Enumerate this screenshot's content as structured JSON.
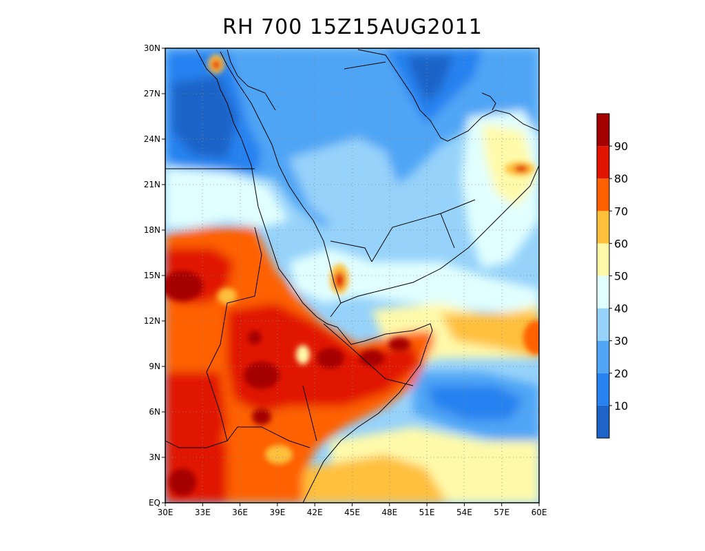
{
  "title": "RH 700 15Z15AUG2011",
  "map": {
    "lon_ticks": [
      "30E",
      "33E",
      "36E",
      "39E",
      "42E",
      "45E",
      "48E",
      "51E",
      "54E",
      "57E",
      "60E"
    ],
    "lat_ticks": [
      "EQ",
      "3N",
      "6N",
      "9N",
      "12N",
      "15N",
      "18N",
      "21N",
      "24N",
      "27N",
      "30N"
    ],
    "extent": {
      "lon_min": 30,
      "lon_max": 60,
      "lat_min": 0,
      "lat_max": 30
    }
  },
  "colorbar": {
    "labels": [
      "10",
      "20",
      "30",
      "40",
      "50",
      "60",
      "70",
      "80",
      "90"
    ],
    "colors": [
      "#1e64c8",
      "#2882f0",
      "#50a5f5",
      "#96d2fa",
      "#e1ffff",
      "#fffaaa",
      "#ffc03c",
      "#ff6000",
      "#e11400",
      "#a50000"
    ]
  },
  "chart_data": {
    "type": "heatmap",
    "title": "RH 700 15Z15AUG2011",
    "x_ticks": [
      "30E",
      "33E",
      "36E",
      "39E",
      "42E",
      "45E",
      "48E",
      "51E",
      "54E",
      "57E",
      "60E"
    ],
    "y_ticks": [
      "EQ",
      "3N",
      "6N",
      "9N",
      "12N",
      "15N",
      "18N",
      "21N",
      "24N",
      "27N",
      "30N"
    ],
    "color_levels": [
      0,
      10,
      20,
      30,
      40,
      50,
      60,
      70,
      80,
      90,
      100
    ],
    "colorbar_labels": [
      "10",
      "20",
      "30",
      "40",
      "50",
      "60",
      "70",
      "80",
      "90"
    ]
  }
}
